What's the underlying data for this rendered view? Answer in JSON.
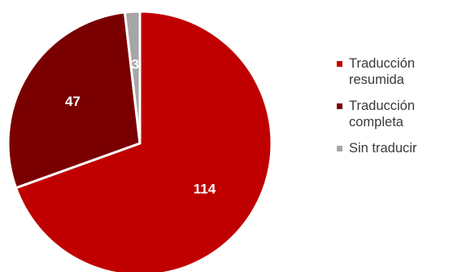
{
  "chart_data": {
    "type": "pie",
    "slices": [
      {
        "label": "Traducción resumida",
        "value": 114,
        "color": "#c00000"
      },
      {
        "label": "Traducción completa",
        "value": 47,
        "color": "#7a0000"
      },
      {
        "label": "Sin traducir",
        "value": 3,
        "color": "#a6a6a6"
      }
    ],
    "legend_position": "right"
  }
}
